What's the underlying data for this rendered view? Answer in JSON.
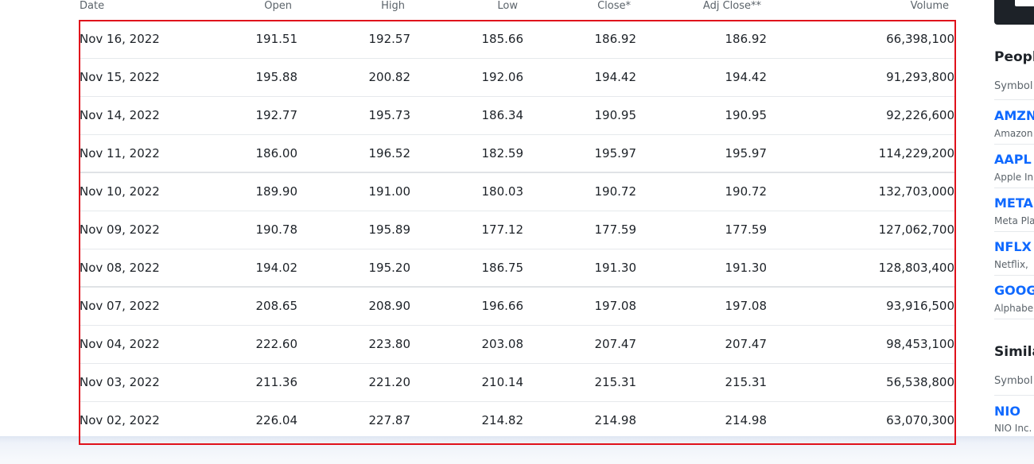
{
  "table": {
    "headers": {
      "date": "Date",
      "open": "Open",
      "high": "High",
      "low": "Low",
      "close": "Close*",
      "adj_close": "Adj Close**",
      "volume": "Volume"
    },
    "rows": [
      {
        "date": "Nov 16, 2022",
        "open": "191.51",
        "high": "192.57",
        "low": "185.66",
        "close": "186.92",
        "adj_close": "186.92",
        "volume": "66,398,100"
      },
      {
        "date": "Nov 15, 2022",
        "open": "195.88",
        "high": "200.82",
        "low": "192.06",
        "close": "194.42",
        "adj_close": "194.42",
        "volume": "91,293,800"
      },
      {
        "date": "Nov 14, 2022",
        "open": "192.77",
        "high": "195.73",
        "low": "186.34",
        "close": "190.95",
        "adj_close": "190.95",
        "volume": "92,226,600"
      },
      {
        "date": "Nov 11, 2022",
        "open": "186.00",
        "high": "196.52",
        "low": "182.59",
        "close": "195.97",
        "adj_close": "195.97",
        "volume": "114,229,200"
      },
      {
        "date": "Nov 10, 2022",
        "open": "189.90",
        "high": "191.00",
        "low": "180.03",
        "close": "190.72",
        "adj_close": "190.72",
        "volume": "132,703,000"
      },
      {
        "date": "Nov 09, 2022",
        "open": "190.78",
        "high": "195.89",
        "low": "177.12",
        "close": "177.59",
        "adj_close": "177.59",
        "volume": "127,062,700"
      },
      {
        "date": "Nov 08, 2022",
        "open": "194.02",
        "high": "195.20",
        "low": "186.75",
        "close": "191.30",
        "adj_close": "191.30",
        "volume": "128,803,400"
      },
      {
        "date": "Nov 07, 2022",
        "open": "208.65",
        "high": "208.90",
        "low": "196.66",
        "close": "197.08",
        "adj_close": "197.08",
        "volume": "93,916,500"
      },
      {
        "date": "Nov 04, 2022",
        "open": "222.60",
        "high": "223.80",
        "low": "203.08",
        "close": "207.47",
        "adj_close": "207.47",
        "volume": "98,453,100"
      },
      {
        "date": "Nov 03, 2022",
        "open": "211.36",
        "high": "221.20",
        "low": "210.14",
        "close": "215.31",
        "adj_close": "215.31",
        "volume": "56,538,800"
      },
      {
        "date": "Nov 02, 2022",
        "open": "226.04",
        "high": "227.87",
        "low": "214.82",
        "close": "214.98",
        "adj_close": "214.98",
        "volume": "63,070,300"
      }
    ]
  },
  "sidebar": {
    "people_title": "Peopl",
    "people_symbol_label": "Symbol",
    "people": [
      {
        "ticker": "AMZN",
        "company": "Amazon"
      },
      {
        "ticker": "AAPL",
        "company": "Apple In"
      },
      {
        "ticker": "META",
        "company": "Meta Pla"
      },
      {
        "ticker": "NFLX",
        "company": "Netflix,"
      },
      {
        "ticker": "GOOG",
        "company": "Alphabe"
      }
    ],
    "similar_title": "Simila",
    "similar_symbol_label": "Symbol",
    "similar": [
      {
        "ticker": "NIO",
        "company": "NIO Inc."
      }
    ]
  },
  "colors": {
    "highlight_border": "#e0111b",
    "ticker_link": "#0f69ff"
  }
}
